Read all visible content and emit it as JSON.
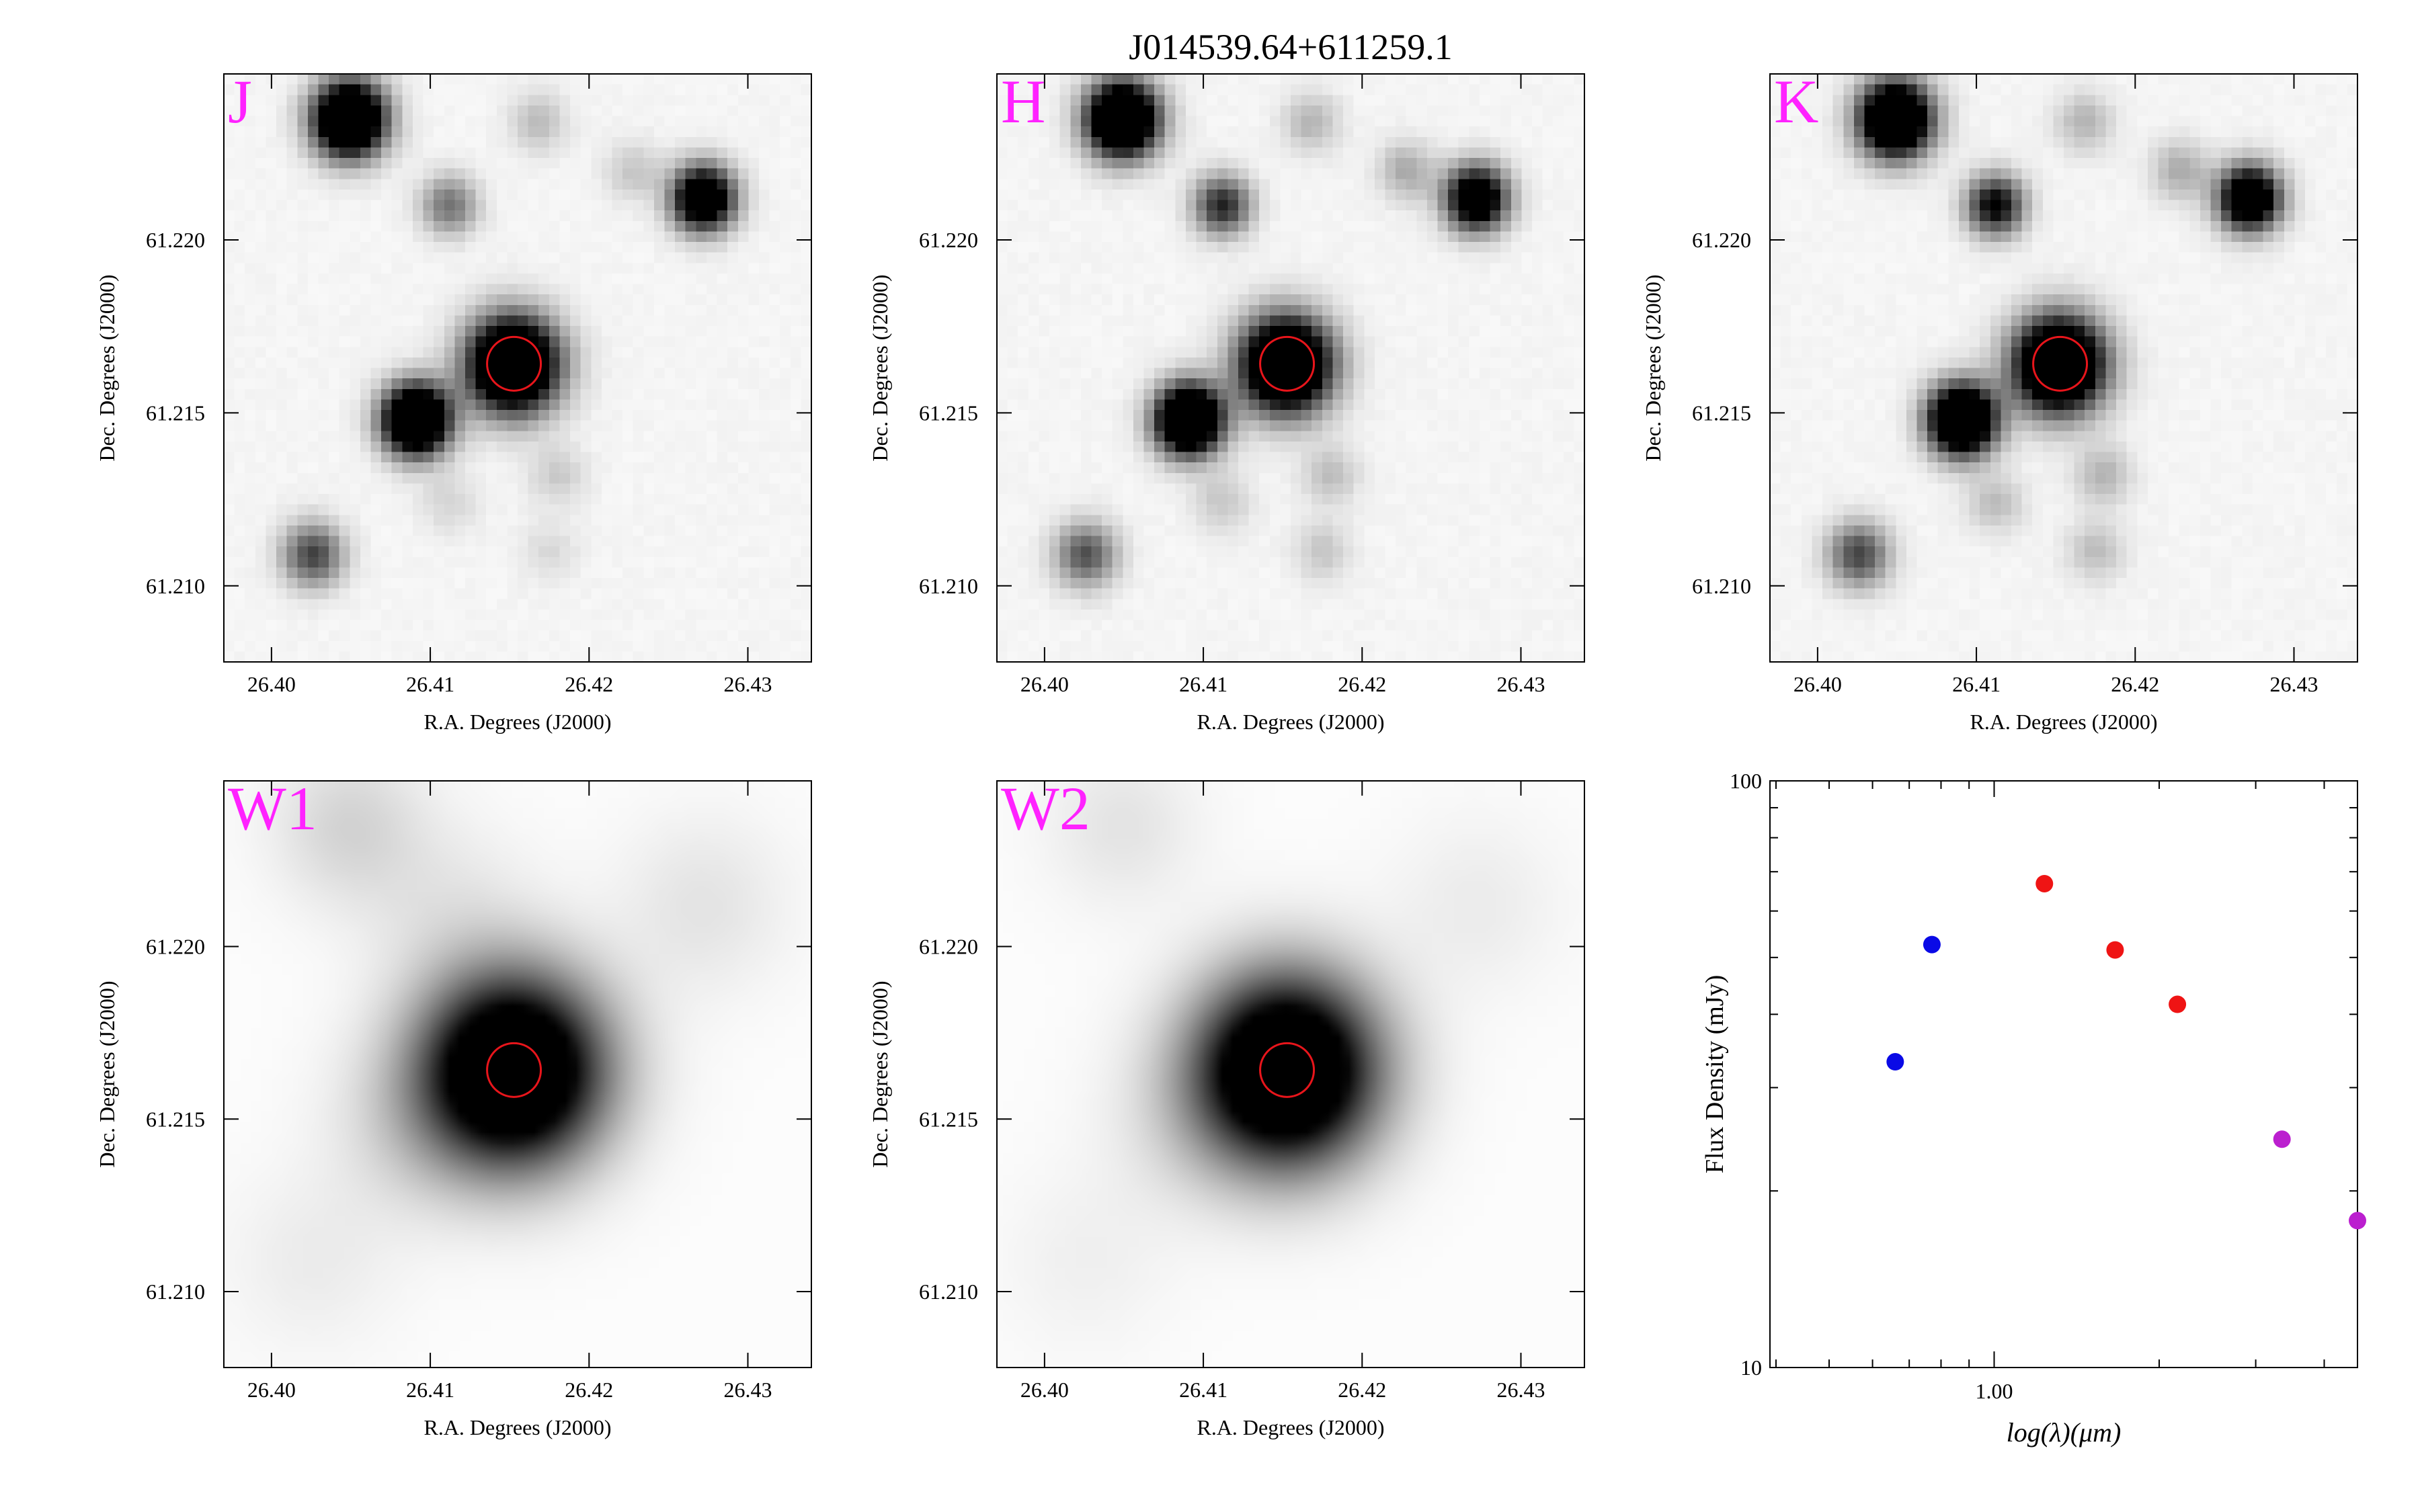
{
  "figure": {
    "title": "J014539.64+611259.1",
    "colors": {
      "band_label": "#ff22ff",
      "aperture": "#e8151b",
      "frame": "#000000"
    }
  },
  "image_panels": [
    {
      "band": "J",
      "kind": "2mass",
      "xlabel": "R.A. Degrees (J2000)",
      "ylabel": "Dec. Degrees (J2000)",
      "ra_range": [
        26.397,
        26.434
      ],
      "dec_range": [
        61.2078,
        61.2248
      ],
      "xticks": [
        "26.40",
        "26.41",
        "26.42",
        "26.43"
      ],
      "yticks": [
        "61.210",
        "61.215",
        "61.220"
      ],
      "target": {
        "ra": 26.41527,
        "dec": 61.21642
      },
      "sources": [
        {
          "ra": 26.4152,
          "dec": 61.2164,
          "flux": 1.0,
          "width": 0.00095
        },
        {
          "ra": 26.4049,
          "dec": 61.2235,
          "flux": 1.0,
          "width": 0.00075
        },
        {
          "ra": 26.4091,
          "dec": 61.2148,
          "flux": 1.0,
          "width": 0.0007
        },
        {
          "ra": 26.4272,
          "dec": 61.2212,
          "flux": 0.8,
          "width": 0.00065
        },
        {
          "ra": 26.4026,
          "dec": 61.2109,
          "flux": 0.38,
          "width": 0.00065
        },
        {
          "ra": 26.4112,
          "dec": 61.221,
          "flux": 0.28,
          "width": 0.0006
        },
        {
          "ra": 26.4168,
          "dec": 61.2234,
          "flux": 0.12,
          "width": 0.0006
        },
        {
          "ra": 26.4228,
          "dec": 61.222,
          "flux": 0.1,
          "width": 0.0006
        },
        {
          "ra": 26.418,
          "dec": 61.2132,
          "flux": 0.09,
          "width": 0.0006
        },
        {
          "ra": 26.4112,
          "dec": 61.2124,
          "flux": 0.07,
          "width": 0.0006
        },
        {
          "ra": 26.4175,
          "dec": 61.211,
          "flux": 0.06,
          "width": 0.0006
        }
      ]
    },
    {
      "band": "H",
      "kind": "2mass",
      "xlabel": "R.A. Degrees (J2000)",
      "ylabel": "Dec. Degrees (J2000)",
      "ra_range": [
        26.397,
        26.434
      ],
      "dec_range": [
        61.2078,
        61.2248
      ],
      "xticks": [
        "26.40",
        "26.41",
        "26.42",
        "26.43"
      ],
      "yticks": [
        "61.210",
        "61.215",
        "61.220"
      ],
      "target": {
        "ra": 26.41527,
        "dec": 61.21642
      },
      "sources": [
        {
          "ra": 26.4152,
          "dec": 61.2164,
          "flux": 1.0,
          "width": 0.00095
        },
        {
          "ra": 26.4049,
          "dec": 61.2235,
          "flux": 1.0,
          "width": 0.00075
        },
        {
          "ra": 26.4091,
          "dec": 61.2148,
          "flux": 1.0,
          "width": 0.0007
        },
        {
          "ra": 26.4272,
          "dec": 61.2212,
          "flux": 0.75,
          "width": 0.00065
        },
        {
          "ra": 26.4026,
          "dec": 61.2109,
          "flux": 0.35,
          "width": 0.00065
        },
        {
          "ra": 26.4112,
          "dec": 61.221,
          "flux": 0.45,
          "width": 0.0006
        },
        {
          "ra": 26.4168,
          "dec": 61.2234,
          "flux": 0.14,
          "width": 0.0006
        },
        {
          "ra": 26.4228,
          "dec": 61.222,
          "flux": 0.16,
          "width": 0.0006
        },
        {
          "ra": 26.418,
          "dec": 61.2132,
          "flux": 0.12,
          "width": 0.0006
        },
        {
          "ra": 26.4112,
          "dec": 61.2124,
          "flux": 0.1,
          "width": 0.0006
        },
        {
          "ra": 26.4175,
          "dec": 61.211,
          "flux": 0.1,
          "width": 0.0006
        }
      ]
    },
    {
      "band": "K",
      "kind": "2mass",
      "xlabel": "R.A. Degrees (J2000)",
      "ylabel": "Dec. Degrees (J2000)",
      "ra_range": [
        26.397,
        26.434
      ],
      "dec_range": [
        61.2078,
        61.2248
      ],
      "xticks": [
        "26.40",
        "26.41",
        "26.42",
        "26.43"
      ],
      "yticks": [
        "61.210",
        "61.215",
        "61.220"
      ],
      "target": {
        "ra": 26.41527,
        "dec": 61.21642
      },
      "sources": [
        {
          "ra": 26.4152,
          "dec": 61.2164,
          "flux": 1.0,
          "width": 0.00095
        },
        {
          "ra": 26.4049,
          "dec": 61.2235,
          "flux": 1.0,
          "width": 0.00075
        },
        {
          "ra": 26.4091,
          "dec": 61.2148,
          "flux": 1.0,
          "width": 0.0007
        },
        {
          "ra": 26.4272,
          "dec": 61.2212,
          "flux": 0.8,
          "width": 0.00065
        },
        {
          "ra": 26.4026,
          "dec": 61.2109,
          "flux": 0.38,
          "width": 0.00065
        },
        {
          "ra": 26.4112,
          "dec": 61.221,
          "flux": 0.55,
          "width": 0.0006
        },
        {
          "ra": 26.4168,
          "dec": 61.2234,
          "flux": 0.14,
          "width": 0.0006
        },
        {
          "ra": 26.4228,
          "dec": 61.222,
          "flux": 0.16,
          "width": 0.0006
        },
        {
          "ra": 26.418,
          "dec": 61.2132,
          "flux": 0.14,
          "width": 0.0006
        },
        {
          "ra": 26.4112,
          "dec": 61.2124,
          "flux": 0.12,
          "width": 0.0006
        },
        {
          "ra": 26.4175,
          "dec": 61.211,
          "flux": 0.12,
          "width": 0.0006
        }
      ]
    },
    {
      "band": "W1",
      "kind": "wise",
      "xlabel": "R.A. Degrees (J2000)",
      "ylabel": "Dec. Degrees (J2000)",
      "ra_range": [
        26.397,
        26.434
      ],
      "dec_range": [
        61.2078,
        61.2248
      ],
      "xticks": [
        "26.40",
        "26.41",
        "26.42",
        "26.43"
      ],
      "yticks": [
        "61.210",
        "61.215",
        "61.220"
      ],
      "target": {
        "ra": 26.41527,
        "dec": 61.21642
      },
      "sources": [
        {
          "ra": 26.4152,
          "dec": 61.2164,
          "flux": 1.0,
          "width": 0.0019
        },
        {
          "ra": 26.4049,
          "dec": 61.2235,
          "flux": 0.1,
          "width": 0.0016
        },
        {
          "ra": 26.4091,
          "dec": 61.2148,
          "flux": 0.08,
          "width": 0.0018
        },
        {
          "ra": 26.4272,
          "dec": 61.2212,
          "flux": 0.06,
          "width": 0.0018
        },
        {
          "ra": 26.4112,
          "dec": 61.221,
          "flux": 0.05,
          "width": 0.0018
        },
        {
          "ra": 26.4026,
          "dec": 61.2109,
          "flux": 0.04,
          "width": 0.0018
        }
      ]
    },
    {
      "band": "W2",
      "kind": "wise",
      "xlabel": "R.A. Degrees (J2000)",
      "ylabel": "Dec. Degrees (J2000)",
      "ra_range": [
        26.397,
        26.434
      ],
      "dec_range": [
        61.2078,
        61.2248
      ],
      "xticks": [
        "26.40",
        "26.41",
        "26.42",
        "26.43"
      ],
      "yticks": [
        "61.210",
        "61.215",
        "61.220"
      ],
      "target": {
        "ra": 26.41527,
        "dec": 61.21642
      },
      "sources": [
        {
          "ra": 26.4152,
          "dec": 61.2164,
          "flux": 1.0,
          "width": 0.0019
        },
        {
          "ra": 26.4049,
          "dec": 61.2235,
          "flux": 0.06,
          "width": 0.0016
        },
        {
          "ra": 26.4091,
          "dec": 61.2148,
          "flux": 0.05,
          "width": 0.0018
        },
        {
          "ra": 26.4272,
          "dec": 61.2212,
          "flux": 0.04,
          "width": 0.0018
        },
        {
          "ra": 26.4026,
          "dec": 61.2109,
          "flux": 0.03,
          "width": 0.0018
        }
      ]
    }
  ],
  "chart_data": {
    "type": "scatter",
    "xlabel": "log(λ)(μm)",
    "ylabel": "Flux Density (mJy)",
    "xscale": "log",
    "yscale": "log",
    "xlim": [
      0.39,
      4.6
    ],
    "ylim": [
      10,
      100
    ],
    "xticks": [
      "1.00"
    ],
    "yticks": [
      "10",
      "100"
    ],
    "series": [
      {
        "color": "#0a0ae6",
        "x": [
          0.66,
          0.77
        ],
        "y": [
          33.2,
          52.6
        ]
      },
      {
        "color": "#ef1414",
        "x": [
          1.235,
          1.662,
          2.159
        ],
        "y": [
          66.8,
          51.5,
          41.6
        ]
      },
      {
        "color": "#bb1fcf",
        "x": [
          3.35,
          4.6
        ],
        "y": [
          24.5,
          17.8
        ]
      }
    ]
  }
}
